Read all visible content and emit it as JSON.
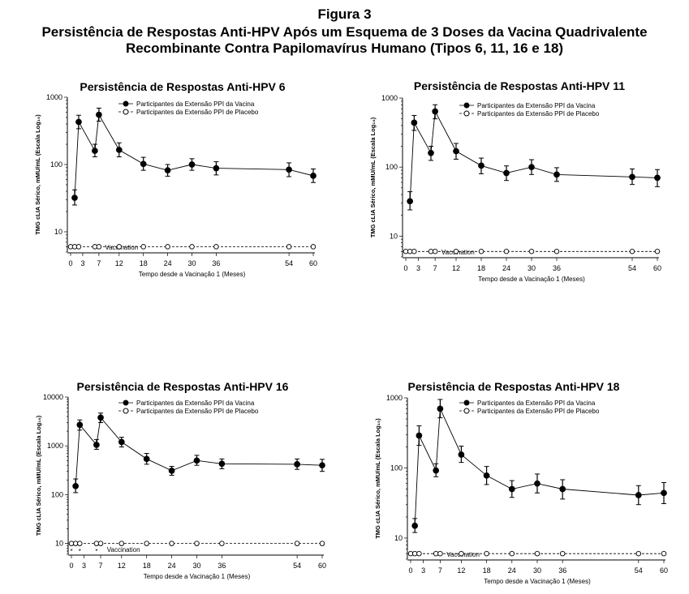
{
  "figure": {
    "label": "Figura 3",
    "title": "Persistência de Respostas Anti-HPV Após um Esquema de 3 Doses da Vacina Quadrivalente",
    "subtitle": "Recombinante Contra Papilomavírus Humano (Tipos 6, 11, 16 e 18)"
  },
  "chart_data": [
    {
      "type": "line",
      "title": "Persistência de Respostas Anti-HPV 6",
      "xlabel": "Tempo desde a Vacinação 1 (Meses)",
      "ylabel": "TMG cLIA Sérico, mMU/mL (Escala Log₁₀)",
      "yscale": "log",
      "ylim": [
        5,
        1000
      ],
      "yticks": [
        {
          "v": 10,
          "label": "10"
        },
        {
          "v": 100,
          "label": "100"
        },
        {
          "v": 1000,
          "label": "1000"
        }
      ],
      "xticks": [
        0,
        3,
        7,
        12,
        18,
        24,
        30,
        36,
        54,
        60
      ],
      "vaccination_label": "Vaccination",
      "vaccination_marker": "*",
      "vaccination_months": [
        0,
        2,
        6
      ],
      "series": [
        {
          "name": "Participantes da Extensão PPI da Vacina",
          "marker": "filled-circle",
          "line": "solid",
          "x": [
            1,
            2,
            6,
            7,
            12,
            18,
            24,
            30,
            36,
            54,
            60
          ],
          "y": [
            32,
            430,
            160,
            550,
            165,
            102,
            82,
            100,
            88,
            84,
            68
          ],
          "yerr_low": [
            25,
            340,
            130,
            440,
            130,
            82,
            67,
            82,
            70,
            66,
            54
          ],
          "yerr_high": [
            42,
            540,
            200,
            690,
            210,
            128,
            100,
            122,
            110,
            106,
            86
          ]
        },
        {
          "name": "Participantes da Extensão PPI de Placebo",
          "marker": "open-circle",
          "line": "dashed",
          "x": [
            0,
            1,
            2,
            6,
            7,
            12,
            18,
            24,
            30,
            36,
            54,
            60
          ],
          "y": [
            6,
            6,
            6,
            6,
            6,
            6,
            6,
            6,
            6,
            6,
            6,
            6
          ]
        }
      ]
    },
    {
      "type": "line",
      "title": "Persistência de Respostas Anti-HPV 11",
      "xlabel": "Tempo desde a Vacinação 1 (Meses)",
      "ylabel": "TMG cLIA Sérico, mMU/mL (Escala Log₁₀)",
      "yscale": "log",
      "ylim": [
        5,
        1000
      ],
      "yticks": [
        {
          "v": 10,
          "label": "10"
        },
        {
          "v": 100,
          "label": "100"
        },
        {
          "v": 1000,
          "label": "1000"
        }
      ],
      "xticks": [
        0,
        3,
        7,
        12,
        18,
        24,
        30,
        36,
        54,
        60
      ],
      "vaccination_label": "Vaccination",
      "vaccination_marker": "*",
      "vaccination_months": [
        0,
        2,
        6
      ],
      "series": [
        {
          "name": "Participantes da Extensão PPI da Vacina",
          "marker": "filled-circle",
          "line": "solid",
          "x": [
            1,
            2,
            6,
            7,
            12,
            18,
            24,
            30,
            36,
            54,
            60
          ],
          "y": [
            32,
            440,
            160,
            640,
            170,
            105,
            82,
            100,
            78,
            72,
            70
          ],
          "yerr_low": [
            24,
            340,
            125,
            500,
            130,
            80,
            64,
            78,
            62,
            56,
            52
          ],
          "yerr_high": [
            44,
            560,
            200,
            800,
            220,
            135,
            104,
            128,
            98,
            94,
            92
          ]
        },
        {
          "name": "Participantes da Extensão PPI de Placebo",
          "marker": "open-circle",
          "line": "dashed",
          "x": [
            0,
            1,
            2,
            6,
            7,
            12,
            18,
            24,
            30,
            36,
            54,
            60
          ],
          "y": [
            6,
            6,
            6,
            6,
            6,
            6,
            6,
            6,
            6,
            6,
            6,
            6
          ]
        }
      ]
    },
    {
      "type": "line",
      "title": "Persistência de Respostas Anti-HPV 16",
      "xlabel": "Tempo desde a Vacinação 1 (Meses)",
      "ylabel": "TMG cLIA Sérico, mMU/mL (Escala Log₁₀)",
      "yscale": "log",
      "ylim": [
        6,
        10000
      ],
      "yticks": [
        {
          "v": 10,
          "label": "10"
        },
        {
          "v": 100,
          "label": "100"
        },
        {
          "v": 1000,
          "label": "1000"
        },
        {
          "v": 10000,
          "label": "10000"
        }
      ],
      "xticks": [
        0,
        3,
        7,
        12,
        18,
        24,
        30,
        36,
        54,
        60
      ],
      "vaccination_label": "Vaccination",
      "vaccination_marker": "*",
      "vaccination_months": [
        0,
        2,
        6
      ],
      "series": [
        {
          "name": "Participantes da Extensão PPI da Vacina",
          "marker": "filled-circle",
          "line": "solid",
          "x": [
            1,
            2,
            6,
            7,
            12,
            18,
            24,
            30,
            36,
            54,
            60
          ],
          "y": [
            150,
            2700,
            1050,
            3800,
            1200,
            540,
            310,
            500,
            430,
            420,
            400
          ],
          "yerr_low": [
            110,
            2100,
            850,
            3000,
            950,
            420,
            250,
            400,
            340,
            330,
            300
          ],
          "yerr_high": [
            210,
            3400,
            1350,
            4700,
            1500,
            700,
            380,
            640,
            540,
            540,
            530
          ]
        },
        {
          "name": "Participantes da Extensão PPI de Placebo",
          "marker": "open-circle",
          "line": "dashed",
          "x": [
            0,
            1,
            2,
            6,
            7,
            12,
            18,
            24,
            30,
            36,
            54,
            60
          ],
          "y": [
            10,
            10,
            10,
            10,
            10,
            10,
            10,
            10,
            10,
            10,
            10,
            10
          ]
        }
      ]
    },
    {
      "type": "line",
      "title": "Persistência de Respostas Anti-HPV 18",
      "xlabel": "Tempo desde a Vacinação 1 (Meses)",
      "ylabel": "TMG cLIA Sérico, mMU/mL (Escala Log₁₀)",
      "yscale": "log",
      "ylim": [
        5,
        1000
      ],
      "yticks": [
        {
          "v": 10,
          "label": "10"
        },
        {
          "v": 100,
          "label": "100"
        },
        {
          "v": 1000,
          "label": "1000"
        }
      ],
      "xticks": [
        0,
        3,
        7,
        12,
        18,
        24,
        30,
        36,
        54,
        60
      ],
      "vaccination_label": "Vaccination",
      "vaccination_marker": "*",
      "vaccination_months": [
        0,
        2,
        6
      ],
      "series": [
        {
          "name": "Participantes da Extensão PPI da Vacina",
          "marker": "filled-circle",
          "line": "solid",
          "x": [
            1,
            2,
            6,
            7,
            12,
            18,
            24,
            30,
            36,
            54,
            60
          ],
          "y": [
            15,
            290,
            92,
            700,
            155,
            78,
            50,
            60,
            50,
            41,
            44
          ],
          "yerr_low": [
            12,
            210,
            75,
            520,
            120,
            58,
            38,
            44,
            36,
            30,
            31
          ],
          "yerr_high": [
            19,
            400,
            115,
            950,
            205,
            105,
            66,
            82,
            68,
            56,
            62
          ]
        },
        {
          "name": "Participantes da Extensão PPI de Placebo",
          "marker": "open-circle",
          "line": "dashed",
          "x": [
            0,
            1,
            2,
            6,
            7,
            12,
            18,
            24,
            30,
            36,
            54,
            60
          ],
          "y": [
            6,
            6,
            6,
            6,
            6,
            6,
            6,
            6,
            6,
            6,
            6,
            6
          ]
        }
      ]
    }
  ]
}
